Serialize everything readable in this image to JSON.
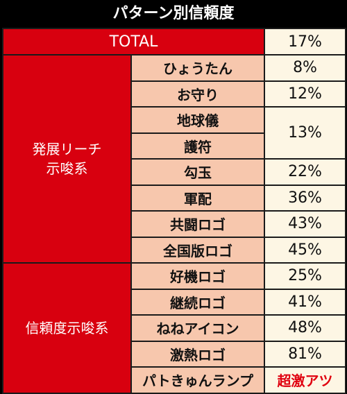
{
  "title": "パターン別信頼度",
  "total": {
    "label": "TOTAL",
    "value": "17%"
  },
  "groups": [
    {
      "name_line1": "発展リーチ",
      "name_line2": "示唆系",
      "rows": [
        {
          "pattern": "ひょうたん",
          "value": "8%"
        },
        {
          "pattern": "お守り",
          "value": "12%"
        },
        {
          "pattern": "地球儀",
          "value": "13%"
        },
        {
          "pattern": "護符",
          "value": ""
        },
        {
          "pattern": "勾玉",
          "value": "22%"
        },
        {
          "pattern": "軍配",
          "value": "36%"
        },
        {
          "pattern": "共闘ロゴ",
          "value": "43%"
        },
        {
          "pattern": "全国版ロゴ",
          "value": "45%"
        }
      ]
    },
    {
      "name_line1": "信頼度示唆系",
      "name_line2": "",
      "rows": [
        {
          "pattern": "好機ロゴ",
          "value": "25%"
        },
        {
          "pattern": "継続ロゴ",
          "value": "41%"
        },
        {
          "pattern": "ねねアイコン",
          "value": "48%"
        },
        {
          "pattern": "激熱ロゴ",
          "value": "81%"
        },
        {
          "pattern": "パトきゅんランプ",
          "value": "超激アツ"
        }
      ]
    }
  ],
  "colors": {
    "category_bg": "#d8000f",
    "pattern_bg": "#f7c7ad",
    "value_bg": "#fdf6e4",
    "hot_text": "#e0000f"
  }
}
